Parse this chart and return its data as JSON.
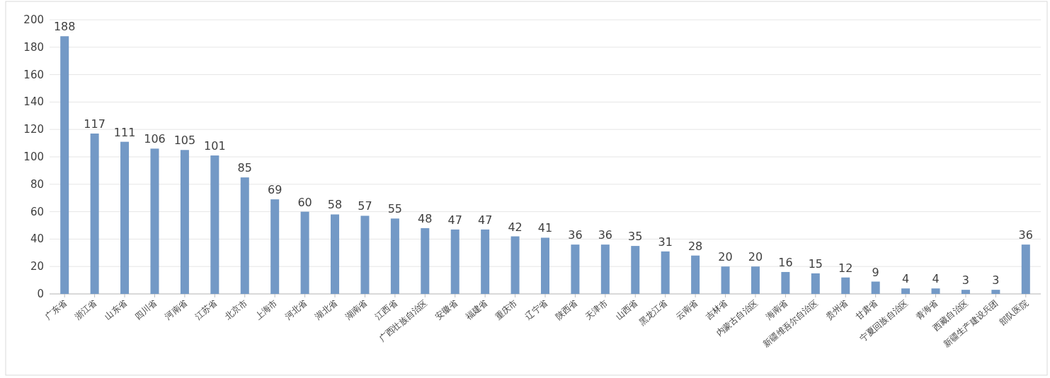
{
  "chart_data": {
    "type": "bar",
    "categories": [
      "广东省",
      "浙江省",
      "山东省",
      "四川省",
      "河南省",
      "江苏省",
      "北京市",
      "上海市",
      "河北省",
      "湖北省",
      "湖南省",
      "江西省",
      "广西壮族自治区",
      "安徽省",
      "福建省",
      "重庆市",
      "辽宁省",
      "陕西省",
      "天津市",
      "山西省",
      "黑龙江省",
      "云南省",
      "吉林省",
      "内蒙古自治区",
      "海南省",
      "新疆维吾尔自治区",
      "贵州省",
      "甘肃省",
      "宁夏回族自治区",
      "青海省",
      "西藏自治区",
      "新疆生产建设兵团",
      "部队医院"
    ],
    "values": [
      188,
      117,
      111,
      106,
      105,
      101,
      85,
      69,
      60,
      58,
      57,
      55,
      48,
      47,
      47,
      42,
      41,
      36,
      36,
      35,
      31,
      28,
      20,
      20,
      16,
      15,
      12,
      9,
      4,
      4,
      3,
      3,
      36
    ],
    "color": "#7399c6",
    "ylim": [
      0,
      200
    ],
    "yticks": [
      0,
      20,
      40,
      60,
      80,
      100,
      120,
      140,
      160,
      180,
      200
    ],
    "grid": "y",
    "data_labels": true
  }
}
